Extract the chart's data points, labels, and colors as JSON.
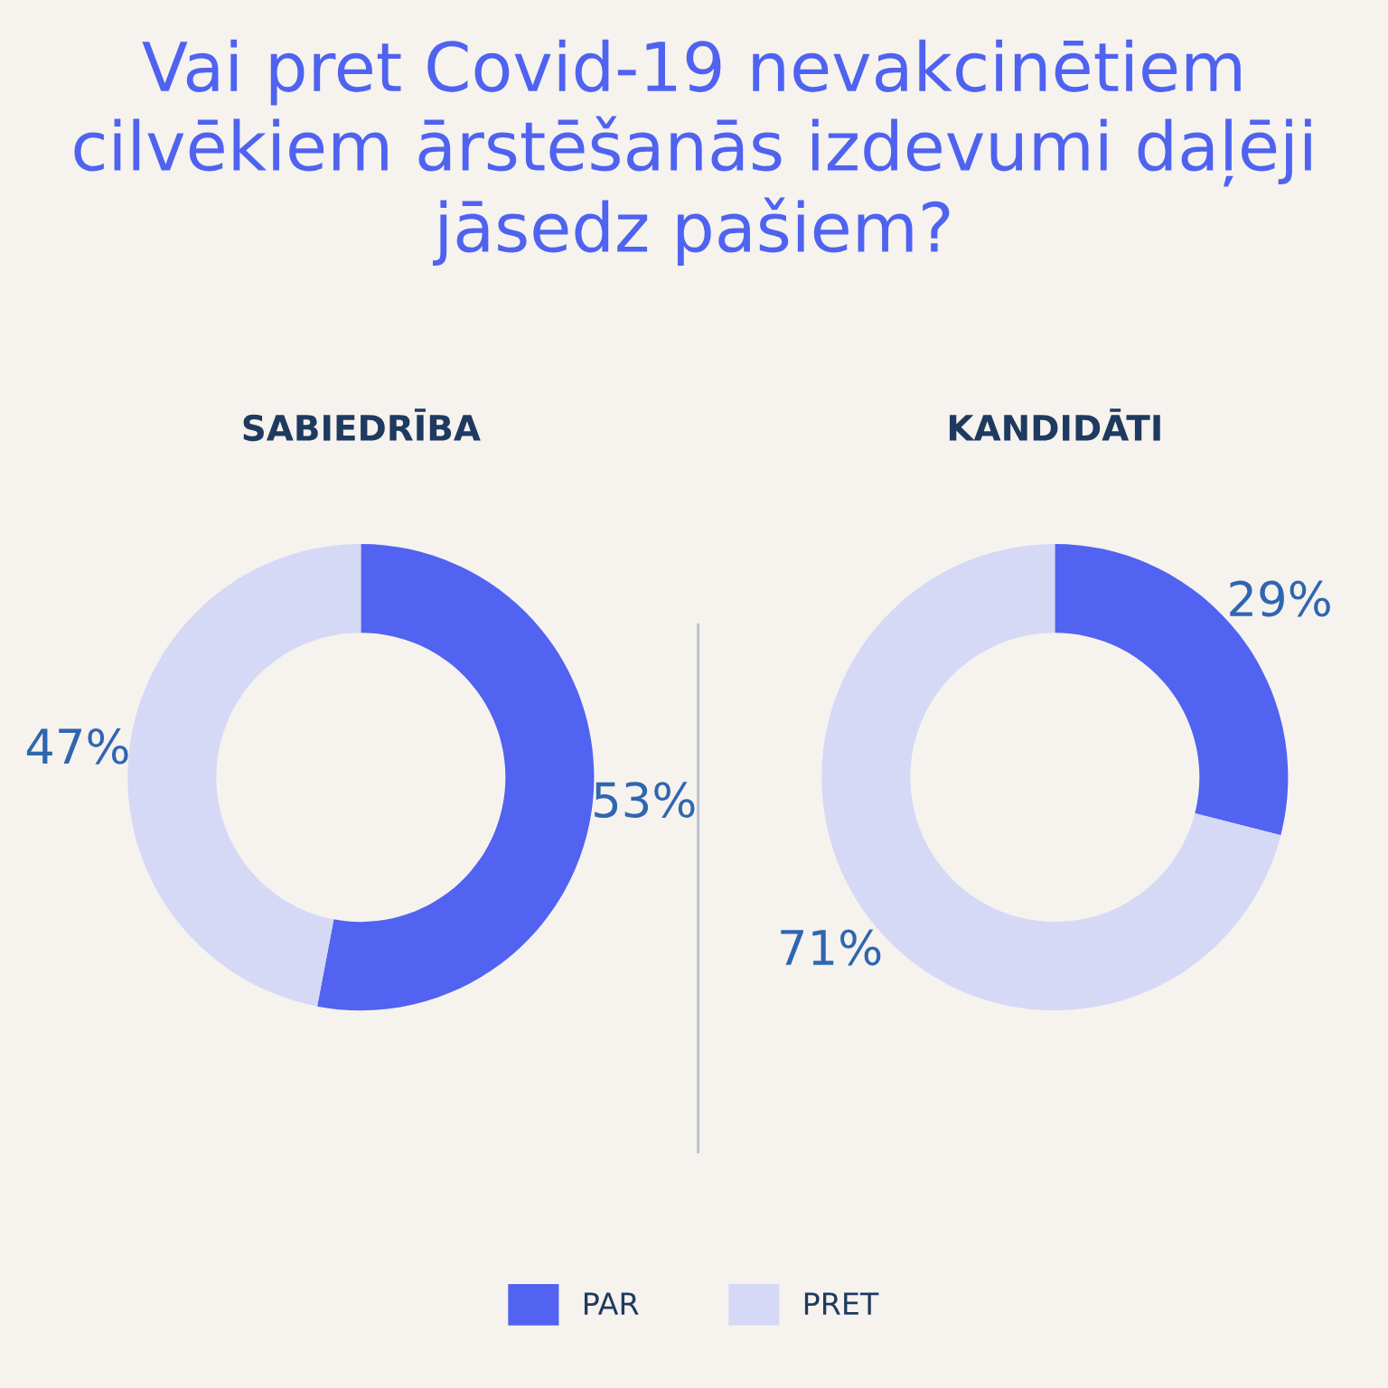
{
  "chart_data": [
    {
      "type": "donut",
      "title": "Vai pret Covid-19 nevakcinētiem cilvēkiem ārstēšanās izdevumi daļēji jāsedz pašiem?",
      "subtitle": "SABIEDRĪBA",
      "categories": [
        "PAR",
        "PRET"
      ],
      "values": [
        53,
        47
      ],
      "value_labels": [
        "53%",
        "47%"
      ],
      "colors": [
        "#5163f0",
        "#d5d9f5"
      ],
      "legend": "bottom"
    },
    {
      "type": "donut",
      "subtitle": "KANDIDĀTI",
      "categories": [
        null,
        null
      ],
      "values": [
        29,
        71
      ],
      "value_labels": [
        "29%",
        "71%"
      ],
      "colors": [
        "#5163f0",
        "#d5d9f5"
      ]
    }
  ]
}
